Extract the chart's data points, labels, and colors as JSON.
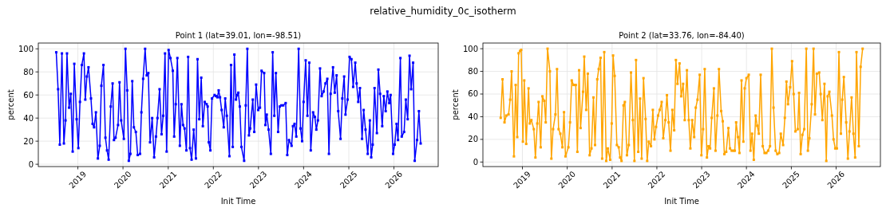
{
  "chart_data": [
    {
      "type": "line",
      "title": "Point 1 (lat=39.01, lon=-98.51)",
      "xlabel": "Init Time",
      "ylabel": "percent",
      "annotations": [
        "relative_humidity_0c_isotherm"
      ],
      "color": "#0000ff",
      "marker": "square",
      "line_style": "solid",
      "grid": true,
      "xlim": [
        "2018-02-15",
        "2026-12-25"
      ],
      "xticks": [
        "2019",
        "2020",
        "2021",
        "2022",
        "2023",
        "2024",
        "2025",
        "2026"
      ],
      "ylim": [
        -2,
        105
      ],
      "yticks": [
        0,
        20,
        40,
        60,
        80,
        100
      ],
      "x": [
        "2018-07-10",
        "2018-07-25",
        "2018-08-08",
        "2018-08-25",
        "2018-09-10",
        "2018-09-23",
        "2018-10-05",
        "2018-10-22",
        "2018-11-05",
        "2018-11-20",
        "2018-12-03",
        "2018-12-22",
        "2019-01-05",
        "2019-01-18",
        "2019-02-02",
        "2019-02-19",
        "2019-03-02",
        "2019-03-15",
        "2019-03-28",
        "2019-04-17",
        "2019-04-30",
        "2019-05-12",
        "2019-05-27",
        "2019-06-12",
        "2019-06-27",
        "2019-07-10",
        "2019-07-27",
        "2019-08-12",
        "2019-08-25",
        "2019-09-07",
        "2019-09-24",
        "2019-10-09",
        "2019-10-20",
        "2019-11-02",
        "2019-11-22",
        "2019-12-04",
        "2019-12-17",
        "2020-01-08",
        "2020-01-21",
        "2020-02-04",
        "2020-02-17",
        "2020-03-01",
        "2020-03-16",
        "2020-03-29",
        "2020-04-14",
        "2020-04-29",
        "2020-05-18",
        "2020-05-29",
        "2020-06-12",
        "2020-06-28",
        "2020-07-11",
        "2020-07-24",
        "2020-08-07",
        "2020-08-24",
        "2020-09-09",
        "2020-09-24",
        "2020-10-06",
        "2020-10-23",
        "2020-11-08",
        "2020-11-21",
        "2020-12-06",
        "2020-12-19",
        "2021-01-04",
        "2021-01-19",
        "2021-02-07",
        "2021-02-18",
        "2021-03-03",
        "2021-03-16",
        "2021-04-05",
        "2021-04-18",
        "2021-05-01",
        "2021-05-13",
        "2021-05-28",
        "2021-06-11",
        "2021-06-26",
        "2021-07-09",
        "2021-07-26",
        "2021-08-13",
        "2021-08-26",
        "2021-09-09",
        "2021-09-25",
        "2021-10-08",
        "2021-10-23",
        "2021-11-08",
        "2021-11-16",
        "2021-11-25",
        "2021-12-08",
        "2021-12-21",
        "2022-01-11",
        "2022-01-22",
        "2022-02-03",
        "2022-02-13",
        "2022-02-24",
        "2022-03-09",
        "2022-03-26",
        "2022-04-07",
        "2022-04-20",
        "2022-05-11",
        "2022-05-24",
        "2022-06-07",
        "2022-06-20",
        "2022-07-03",
        "2022-07-13",
        "2022-07-22",
        "2022-08-03",
        "2022-08-16",
        "2022-09-07",
        "2022-09-20",
        "2022-10-03",
        "2022-10-16",
        "2022-10-26",
        "2022-11-16",
        "2022-11-28",
        "2022-12-13",
        "2022-12-30",
        "2023-01-13",
        "2023-01-26",
        "2023-02-16",
        "2023-02-26",
        "2023-03-09",
        "2023-03-24",
        "2023-04-11",
        "2023-04-26",
        "2023-05-09",
        "2023-05-22",
        "2023-06-09",
        "2023-06-22",
        "2023-07-05",
        "2023-07-20",
        "2023-08-09",
        "2023-08-22",
        "2023-09-05",
        "2023-09-26",
        "2023-10-07",
        "2023-10-20",
        "2023-11-03",
        "2023-11-22",
        "2023-12-07",
        "2023-12-20",
        "2024-01-01",
        "2024-01-18",
        "2024-02-01",
        "2024-02-16",
        "2024-02-28",
        "2024-03-18",
        "2024-04-01",
        "2024-04-13",
        "2024-04-26",
        "2024-05-13",
        "2024-05-26",
        "2024-06-11",
        "2024-06-26",
        "2024-07-11",
        "2024-07-24",
        "2024-08-07",
        "2024-08-26",
        "2024-09-09",
        "2024-09-24",
        "2024-10-07",
        "2024-10-26",
        "2024-11-09",
        "2024-11-24",
        "2024-12-05",
        "2024-12-22",
        "2025-01-07",
        "2025-01-22",
        "2025-02-05",
        "2025-02-22",
        "2025-03-05",
        "2025-03-18",
        "2025-04-01",
        "2025-04-18",
        "2025-05-01",
        "2025-05-16",
        "2025-06-03",
        "2025-06-20",
        "2025-07-01",
        "2025-07-13",
        "2025-07-28",
        "2025-08-16",
        "2025-08-28",
        "2025-09-11",
        "2025-09-28",
        "2025-10-11",
        "2025-10-26",
        "2025-11-09",
        "2025-11-24",
        "2025-12-05",
        "2025-12-25",
        "2026-01-07",
        "2026-01-22",
        "2026-02-03",
        "2026-02-22",
        "2026-03-05",
        "2026-03-24",
        "2026-04-07",
        "2026-04-22",
        "2026-05-07",
        "2026-05-20",
        "2026-06-05",
        "2026-06-18",
        "2026-07-07",
        "2026-07-22",
        "2026-08-05"
      ],
      "values": [
        97,
        65,
        17,
        96,
        18,
        38,
        96,
        49,
        61,
        11,
        87,
        39,
        14,
        54,
        86,
        96,
        56,
        76,
        84,
        57,
        35,
        32,
        45,
        5,
        16,
        68,
        86,
        23,
        12,
        4,
        50,
        70,
        21,
        23,
        34,
        71,
        38,
        22,
        100,
        64,
        3,
        9,
        72,
        32,
        28,
        8,
        9,
        45,
        74,
        100,
        77,
        79,
        19,
        40,
        6,
        24,
        40,
        65,
        26,
        42,
        96,
        11,
        99,
        92,
        81,
        24,
        52,
        92,
        16,
        52,
        34,
        31,
        12,
        93,
        14,
        4,
        30,
        5,
        91,
        39,
        75,
        33,
        54,
        52,
        50,
        19,
        12,
        57,
        60,
        59,
        58,
        64,
        58,
        47,
        32,
        57,
        42,
        7,
        86,
        15,
        95,
        56,
        60,
        62,
        50,
        15,
        3,
        51,
        100,
        25,
        31,
        56,
        28,
        69,
        47,
        49,
        81,
        79,
        34,
        43,
        30,
        9,
        97,
        42,
        79,
        28,
        50,
        51,
        51,
        53,
        8,
        21,
        16,
        33,
        35,
        24,
        100,
        31,
        20,
        54,
        90,
        42,
        88,
        12,
        45,
        41,
        30,
        38,
        83,
        59,
        63,
        70,
        74,
        9,
        61,
        84,
        62,
        77,
        46,
        22,
        57,
        76,
        43,
        56,
        93,
        91,
        67,
        88,
        70,
        54,
        66,
        22,
        47,
        30,
        9,
        38,
        6,
        17,
        66,
        27,
        82,
        61,
        33,
        59,
        46,
        63,
        53,
        60,
        9,
        17,
        35,
        21,
        92,
        24,
        28,
        56,
        39,
        94,
        65,
        88,
        3,
        21,
        46,
        18
      ]
    },
    {
      "type": "line",
      "title": "Point 2 (lat=33.76, lon=-84.40)",
      "xlabel": "Init Time",
      "ylabel": "percent",
      "color": "#ffa500",
      "marker": "square",
      "line_style": "solid",
      "grid": true,
      "xlim": [
        "2018-02-13",
        "2026-12-28"
      ],
      "xticks": [
        "2019",
        "2020",
        "2021",
        "2022",
        "2023",
        "2024",
        "2025",
        "2026"
      ],
      "ylim": [
        -4,
        105
      ],
      "yticks": [
        0,
        20,
        40,
        60,
        80,
        100
      ],
      "x": [
        "2018-07-08",
        "2018-07-23",
        "2018-08-08",
        "2018-08-23",
        "2018-09-10",
        "2018-09-23",
        "2018-10-05",
        "2018-10-24",
        "2018-11-07",
        "2018-11-20",
        "2018-12-01",
        "2018-12-13",
        "2018-12-22",
        "2019-01-05",
        "2019-01-16",
        "2019-02-01",
        "2019-02-20",
        "2019-03-02",
        "2019-03-15",
        "2019-04-04",
        "2019-04-17",
        "2019-05-02",
        "2019-05-13",
        "2019-05-30",
        "2019-06-13",
        "2019-06-28",
        "2019-07-10",
        "2019-07-25",
        "2019-08-13",
        "2019-08-25",
        "2019-09-08",
        "2019-09-27",
        "2019-10-10",
        "2019-10-23",
        "2019-11-06",
        "2019-11-23",
        "2019-12-06",
        "2019-12-18",
        "2020-01-11",
        "2020-01-24",
        "2020-02-07",
        "2020-02-22",
        "2020-03-11",
        "2020-03-24",
        "2020-04-07",
        "2020-04-19",
        "2020-05-09",
        "2020-05-19",
        "2020-06-04",
        "2020-06-17",
        "2020-07-02",
        "2020-07-17",
        "2020-08-02",
        "2020-08-15",
        "2020-09-02",
        "2020-09-14",
        "2020-09-29",
        "2020-10-12",
        "2020-10-29",
        "2020-11-14",
        "2020-11-27",
        "2020-12-16",
        "2020-12-29",
        "2021-01-09",
        "2021-01-22",
        "2021-02-09",
        "2021-02-24",
        "2021-03-07",
        "2021-03-19",
        "2021-04-04",
        "2021-04-15",
        "2021-05-02",
        "2021-05-17",
        "2021-06-04",
        "2021-06-19",
        "2021-07-02",
        "2021-07-15",
        "2021-08-02",
        "2021-08-17",
        "2021-08-30",
        "2021-09-14",
        "2021-10-01",
        "2021-10-14",
        "2021-10-27",
        "2021-11-14",
        "2021-11-29",
        "2021-12-12",
        "2021-12-25",
        "2022-01-11",
        "2022-01-24",
        "2022-02-09",
        "2022-02-22",
        "2022-03-11",
        "2022-03-24",
        "2022-04-07",
        "2022-04-22",
        "2022-05-07",
        "2022-05-22",
        "2022-06-05",
        "2022-06-18",
        "2022-07-05",
        "2022-07-18",
        "2022-08-03",
        "2022-08-16",
        "2022-09-03",
        "2022-09-18",
        "2022-10-01",
        "2022-10-16",
        "2022-11-01",
        "2022-11-14",
        "2022-11-28",
        "2022-12-16",
        "2022-12-30",
        "2023-01-13",
        "2023-01-26",
        "2023-02-13",
        "2023-02-26",
        "2023-03-11",
        "2023-03-24",
        "2023-04-11",
        "2023-04-24",
        "2023-05-09",
        "2023-05-22",
        "2023-06-09",
        "2023-06-22",
        "2023-07-05",
        "2023-07-20",
        "2023-08-07",
        "2023-08-20",
        "2023-09-03",
        "2023-09-18",
        "2023-09-28",
        "2023-10-09",
        "2023-10-24",
        "2023-11-05",
        "2023-11-22",
        "2023-12-07",
        "2023-12-18",
        "2024-01-01",
        "2024-01-20",
        "2024-02-03",
        "2024-02-16",
        "2024-03-01",
        "2024-03-16",
        "2024-03-29",
        "2024-04-11",
        "2024-04-26",
        "2024-05-13",
        "2024-05-28",
        "2024-06-11",
        "2024-06-26",
        "2024-07-11",
        "2024-07-26",
        "2024-08-09",
        "2024-08-26",
        "2024-09-09",
        "2024-09-24",
        "2024-10-07",
        "2024-10-26",
        "2024-11-09",
        "2024-11-22",
        "2024-12-05",
        "2024-12-22",
        "2025-01-07",
        "2025-01-20",
        "2025-02-03",
        "2025-02-22",
        "2025-03-05",
        "2025-03-18",
        "2025-04-01",
        "2025-04-16",
        "2025-05-03",
        "2025-05-16",
        "2025-05-28",
        "2025-06-16",
        "2025-07-01",
        "2025-07-13",
        "2025-07-28",
        "2025-08-16",
        "2025-08-28",
        "2025-09-11",
        "2025-09-28",
        "2025-10-13",
        "2025-10-24",
        "2025-11-07",
        "2025-11-28",
        "2025-12-11",
        "2025-12-25",
        "2026-01-07",
        "2026-01-24",
        "2026-02-09",
        "2026-02-20",
        "2026-03-05",
        "2026-03-24",
        "2026-04-07",
        "2026-04-20",
        "2026-05-07",
        "2026-05-22",
        "2026-06-05",
        "2026-06-16",
        "2026-07-05",
        "2026-07-20",
        "2026-08-05"
      ],
      "values": [
        39,
        73,
        35,
        41,
        42,
        55,
        80,
        5,
        68,
        22,
        96,
        98,
        99,
        18,
        72,
        16,
        65,
        34,
        37,
        29,
        4,
        34,
        53,
        13,
        58,
        54,
        35,
        100,
        80,
        3,
        29,
        42,
        82,
        29,
        25,
        13,
        44,
        5,
        13,
        35,
        72,
        68,
        68,
        9,
        81,
        30,
        62,
        93,
        46,
        78,
        6,
        12,
        57,
        15,
        73,
        82,
        92,
        3,
        97,
        1,
        12,
        2,
        34,
        94,
        76,
        15,
        13,
        4,
        1,
        50,
        53,
        6,
        15,
        79,
        37,
        1,
        90,
        9,
        56,
        3,
        74,
        38,
        1,
        18,
        14,
        46,
        20,
        31,
        41,
        46,
        53,
        21,
        37,
        59,
        35,
        10,
        46,
        28,
        90,
        69,
        87,
        58,
        69,
        37,
        81,
        37,
        12,
        37,
        22,
        48,
        55,
        77,
        6,
        29,
        82,
        4,
        14,
        12,
        39,
        65,
        10,
        41,
        82,
        45,
        36,
        7,
        9,
        30,
        12,
        10,
        10,
        10,
        35,
        22,
        8,
        72,
        18,
        65,
        74,
        77,
        10,
        25,
        2,
        41,
        32,
        25,
        77,
        14,
        8,
        8,
        10,
        14,
        100,
        48,
        10,
        7,
        8,
        25,
        15,
        39,
        71,
        51,
        66,
        89,
        60,
        27,
        29,
        61,
        7,
        24,
        29,
        100,
        10,
        21,
        51,
        100,
        42,
        78,
        79,
        60,
        37,
        69,
        1,
        58,
        62,
        41,
        20,
        12,
        12,
        97,
        25,
        55,
        75,
        35,
        3,
        27,
        57,
        25,
        4,
        97,
        14,
        84,
        100
      ]
    }
  ]
}
